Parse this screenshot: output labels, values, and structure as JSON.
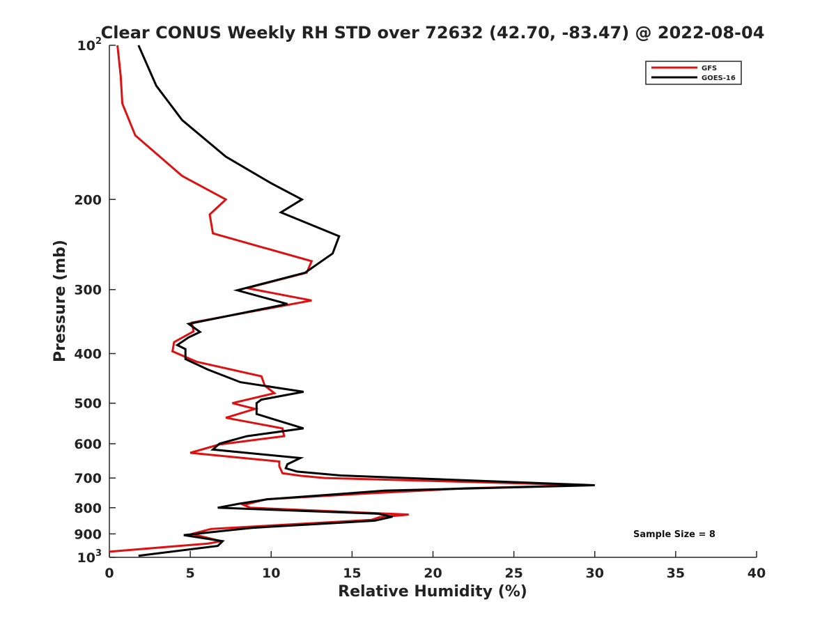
{
  "chart_data": {
    "type": "line",
    "title": "Clear CONUS Weekly RH STD over 72632 (42.70, -83.47) @ 2022-08-04",
    "xlabel": "Relative Humidity (%)",
    "ylabel": "Pressure (mb)",
    "xlim": [
      0,
      40
    ],
    "ylim": [
      1000,
      100
    ],
    "y_scale": "log",
    "y_reversed": true,
    "x_ticks": [
      0,
      5,
      10,
      15,
      20,
      25,
      30,
      35,
      40
    ],
    "y_ticks": [
      {
        "value": 100,
        "label": "10",
        "sup": "2"
      },
      {
        "value": 200,
        "label": "200"
      },
      {
        "value": 300,
        "label": "300"
      },
      {
        "value": 400,
        "label": "400"
      },
      {
        "value": 500,
        "label": "500"
      },
      {
        "value": 600,
        "label": "600"
      },
      {
        "value": 700,
        "label": "700"
      },
      {
        "value": 800,
        "label": "800"
      },
      {
        "value": 900,
        "label": "900"
      },
      {
        "value": 1000,
        "label": "10",
        "sup": "3"
      }
    ],
    "grid": false,
    "legend_position": "top-right",
    "annotation": "Sample Size = 8",
    "series": [
      {
        "name": "GFS",
        "color": "#dd1111",
        "points": [
          [
            0.5,
            100
          ],
          [
            0.7,
            115
          ],
          [
            0.8,
            130
          ],
          [
            1.6,
            150
          ],
          [
            4.5,
            180
          ],
          [
            7.2,
            200
          ],
          [
            6.2,
            214
          ],
          [
            6.4,
            233
          ],
          [
            12.5,
            264
          ],
          [
            12.2,
            278
          ],
          [
            8.5,
            298
          ],
          [
            12.5,
            315
          ],
          [
            5.1,
            348
          ],
          [
            5.2,
            362
          ],
          [
            4.0,
            380
          ],
          [
            3.9,
            396
          ],
          [
            5.4,
            415
          ],
          [
            9.4,
            443
          ],
          [
            9.6,
            462
          ],
          [
            10.2,
            478
          ],
          [
            7.6,
            500
          ],
          [
            9.0,
            513
          ],
          [
            7.2,
            534
          ],
          [
            10.7,
            560
          ],
          [
            10.8,
            580
          ],
          [
            6.8,
            602
          ],
          [
            5.0,
            625
          ],
          [
            10.5,
            650
          ],
          [
            10.5,
            664
          ],
          [
            10.7,
            685
          ],
          [
            11.8,
            693
          ],
          [
            13.3,
            700
          ],
          [
            24.0,
            715
          ],
          [
            29.5,
            723
          ],
          [
            22.0,
            733
          ],
          [
            16.0,
            750
          ],
          [
            9.7,
            770
          ],
          [
            8.3,
            790
          ],
          [
            8.7,
            800
          ],
          [
            18.5,
            825
          ],
          [
            16.7,
            835
          ],
          [
            16.2,
            845
          ],
          [
            6.3,
            880
          ],
          [
            5.1,
            900
          ],
          [
            6.9,
            930
          ],
          [
            6.1,
            940
          ],
          [
            0.0,
            975
          ]
        ]
      },
      {
        "name": "GOES-16",
        "color": "#000000",
        "points": [
          [
            1.8,
            100
          ],
          [
            2.9,
            120
          ],
          [
            4.5,
            140
          ],
          [
            7.2,
            165
          ],
          [
            10.0,
            186
          ],
          [
            11.9,
            200
          ],
          [
            10.6,
            212
          ],
          [
            14.2,
            236
          ],
          [
            13.8,
            255
          ],
          [
            12.1,
            278
          ],
          [
            7.9,
            301
          ],
          [
            11.0,
            320
          ],
          [
            4.9,
            350
          ],
          [
            5.6,
            363
          ],
          [
            4.9,
            372
          ],
          [
            4.2,
            385
          ],
          [
            4.7,
            392
          ],
          [
            4.7,
            410
          ],
          [
            6.1,
            430
          ],
          [
            8.1,
            455
          ],
          [
            12.0,
            475
          ],
          [
            9.4,
            492
          ],
          [
            9.1,
            500
          ],
          [
            9.1,
            525
          ],
          [
            12.0,
            560
          ],
          [
            8.5,
            580
          ],
          [
            6.8,
            600
          ],
          [
            6.4,
            616
          ],
          [
            11.8,
            640
          ],
          [
            11.0,
            658
          ],
          [
            10.9,
            670
          ],
          [
            11.6,
            680
          ],
          [
            14.3,
            692
          ],
          [
            30.0,
            723
          ],
          [
            17.0,
            741
          ],
          [
            9.8,
            770
          ],
          [
            8.0,
            786
          ],
          [
            6.7,
            800
          ],
          [
            16.6,
            822
          ],
          [
            17.5,
            833
          ],
          [
            16.4,
            848
          ],
          [
            8.8,
            876
          ],
          [
            4.6,
            905
          ],
          [
            7.0,
            930
          ],
          [
            6.7,
            950
          ],
          [
            1.8,
            993
          ]
        ]
      }
    ]
  }
}
